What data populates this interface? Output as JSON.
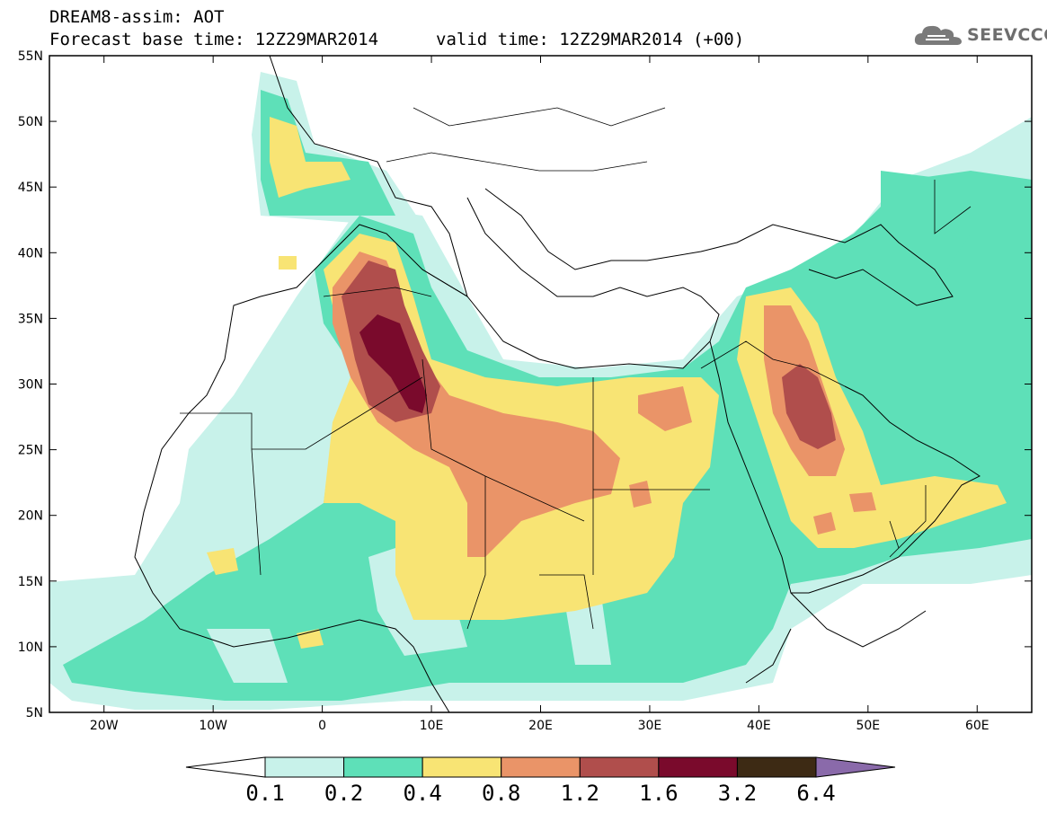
{
  "header": {
    "line1": "DREAM8-assim: AOT",
    "line2": "Forecast base time: 12Z29MAR2014",
    "valid": "valid time: 12Z29MAR2014 (+00)"
  },
  "logo": {
    "text": "SEEVCCC",
    "icon": "cloud-icon"
  },
  "map": {
    "lon_range": [
      -25,
      65
    ],
    "lat_range": [
      5,
      55
    ],
    "lat_labels": [
      "55N",
      "50N",
      "45N",
      "40N",
      "35N",
      "30N",
      "25N",
      "20N",
      "15N",
      "10N",
      "5N"
    ],
    "lon_labels": [
      "20W",
      "10W",
      "0",
      "10E",
      "20E",
      "30E",
      "40E",
      "50E",
      "60E"
    ],
    "variable": "AOT",
    "max_region": "Algeria/Tunisia border (~5-9E, 28-35N) > 1.6; Saudi Arabia (~43-46E, 25-30N) 1.2-1.6"
  },
  "colorbar": {
    "labels": [
      "0.1",
      "0.2",
      "0.4",
      "0.8",
      "1.2",
      "1.6",
      "3.2",
      "6.4"
    ],
    "colors": [
      "#ffffff",
      "#c8f2ea",
      "#5ee0b8",
      "#f8e474",
      "#ea9468",
      "#b04e4c",
      "#7a0a2c",
      "#3d2a14",
      "#8a6aaa"
    ]
  }
}
